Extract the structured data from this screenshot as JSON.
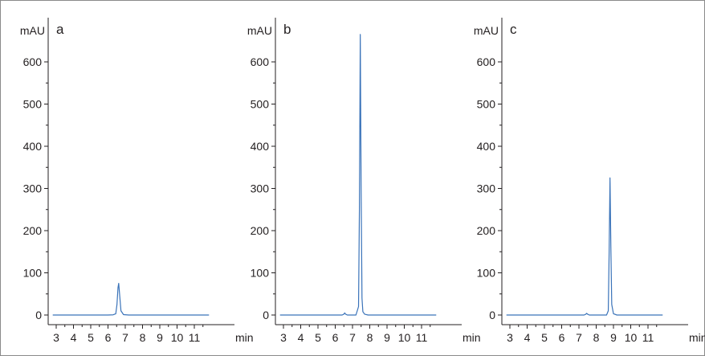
{
  "chart_data": [
    {
      "type": "line",
      "panel_label": "a",
      "ylabel": "mAU",
      "xlabel": "min",
      "xlim": [
        2.6,
        11.9
      ],
      "ylim": [
        -20,
        680
      ],
      "xticks": [
        "3",
        "4",
        "5",
        "6",
        "7",
        "8",
        "9",
        "10",
        "11"
      ],
      "yticks": [
        "0",
        "100",
        "200",
        "300",
        "400",
        "500",
        "600"
      ],
      "color": "#3a73b9",
      "series": [
        {
          "x": [
            2.8,
            6.0,
            6.3,
            6.45,
            6.52,
            6.58,
            6.62,
            6.68,
            6.75,
            6.9,
            7.2,
            11.85
          ],
          "y": [
            0,
            0,
            0.5,
            3,
            25,
            65,
            75,
            45,
            10,
            1,
            0,
            0
          ]
        }
      ]
    },
    {
      "type": "line",
      "panel_label": "b",
      "ylabel": "mAU",
      "xlabel": "min",
      "xlim": [
        2.6,
        11.9
      ],
      "ylim": [
        -20,
        680
      ],
      "xticks": [
        "3",
        "4",
        "5",
        "6",
        "7",
        "8",
        "9",
        "10",
        "11"
      ],
      "yticks": [
        "0",
        "100",
        "200",
        "300",
        "400",
        "500",
        "600"
      ],
      "color": "#3a73b9",
      "series": [
        {
          "x": [
            2.8,
            6.4,
            6.5,
            6.55,
            6.6,
            6.7,
            7.2,
            7.35,
            7.4,
            7.45,
            7.5,
            7.55,
            7.6,
            7.7,
            7.9,
            11.85
          ],
          "y": [
            0,
            0,
            2,
            5,
            2,
            0,
            0,
            20,
            250,
            665,
            300,
            40,
            8,
            2,
            0,
            0
          ]
        }
      ]
    },
    {
      "type": "line",
      "panel_label": "c",
      "ylabel": "mAU",
      "xlabel": "min",
      "xlim": [
        2.6,
        11.9
      ],
      "ylim": [
        -20,
        680
      ],
      "xticks": [
        "3",
        "4",
        "5",
        "6",
        "7",
        "8",
        "9",
        "10",
        "11"
      ],
      "yticks": [
        "0",
        "100",
        "200",
        "300",
        "400",
        "500",
        "600"
      ],
      "color": "#3a73b9",
      "series": [
        {
          "x": [
            2.8,
            7.3,
            7.4,
            7.45,
            7.5,
            7.6,
            8.6,
            8.7,
            8.75,
            8.8,
            8.85,
            8.9,
            9.0,
            9.2,
            11.85
          ],
          "y": [
            0,
            0,
            2,
            4,
            2,
            0,
            0,
            10,
            150,
            325,
            160,
            25,
            3,
            0,
            0
          ]
        }
      ]
    }
  ]
}
